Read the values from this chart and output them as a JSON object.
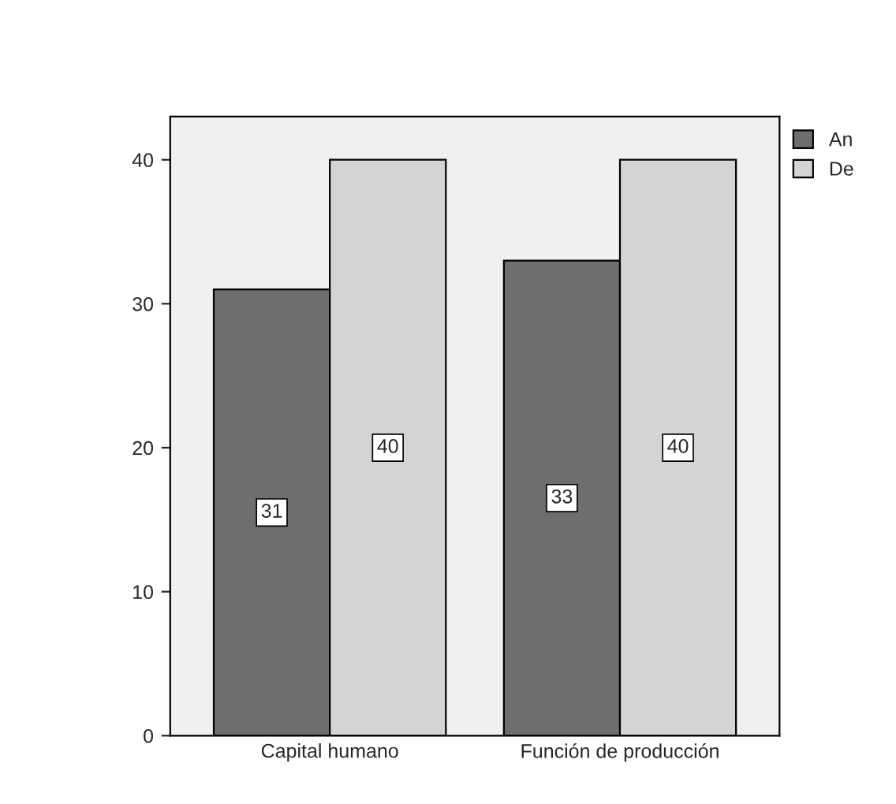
{
  "chart_data": {
    "type": "bar",
    "categories": [
      "Capital humano",
      "Función de producción"
    ],
    "series": [
      {
        "name": "An",
        "color": "#6e6e6e",
        "values": [
          31,
          33
        ]
      },
      {
        "name": "De",
        "color": "#d4d4d4",
        "values": [
          40,
          40
        ]
      }
    ],
    "ylim": [
      0,
      43
    ],
    "yticks": [
      0,
      10,
      20,
      30,
      40
    ],
    "data_labels": true,
    "legend": "top right",
    "grid": false
  }
}
